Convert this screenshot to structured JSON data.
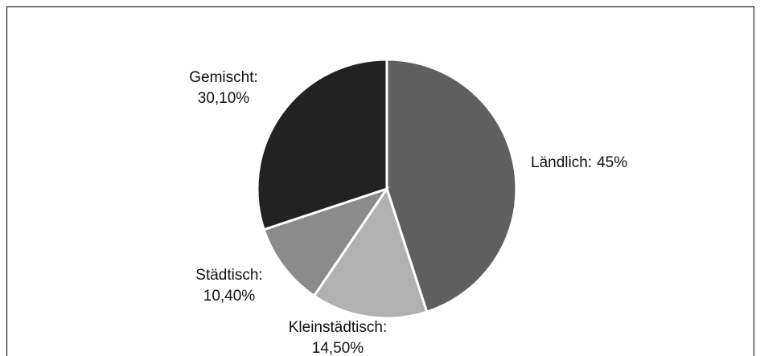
{
  "chart_data": {
    "type": "pie",
    "categories": [
      "Ländlich:",
      "Kleinstädtisch:",
      "Städtisch:",
      "Gemischt:"
    ],
    "values": [
      45,
      14.5,
      10.4,
      30.1
    ],
    "value_labels": [
      "45%",
      "14,50%",
      "10,40%",
      "30,10%"
    ],
    "colors": [
      "#5f5f5f",
      "#b1b1b1",
      "#8b8b8b",
      "#222222"
    ]
  }
}
